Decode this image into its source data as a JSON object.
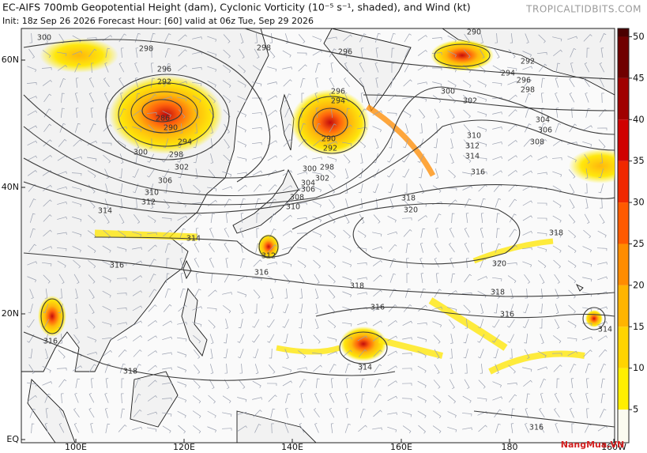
{
  "header": {
    "title": "EC-AIFS 700mb Geopotential Height (dam), Cyclonic Vorticity (10⁻⁵ s⁻¹, shaded), and Wind (kt)",
    "subtitle": "Init: 18z Sep 26 2026   Forecast Hour: [60]   valid at 06z Tue, Sep 29 2026",
    "site": "TROPICALTIDBITS.COM"
  },
  "map": {
    "lat_labels": [
      "60N",
      "40N",
      "20N",
      "EQ"
    ],
    "lon_labels": [
      "100E",
      "120E",
      "140E",
      "160E",
      "180",
      "160W"
    ],
    "contour_labels": [
      "300",
      "298",
      "296",
      "292",
      "286",
      "290",
      "294",
      "298",
      "302",
      "300",
      "306",
      "310",
      "312",
      "314",
      "298",
      "296",
      "290",
      "292",
      "294",
      "296",
      "298",
      "300",
      "302",
      "296",
      "294",
      "290",
      "292",
      "298",
      "300",
      "302",
      "304",
      "306",
      "308",
      "310",
      "304",
      "306",
      "308",
      "310",
      "312",
      "314",
      "316",
      "318",
      "320",
      "314",
      "312",
      "316",
      "316",
      "320",
      "318",
      "318",
      "318",
      "316",
      "316",
      "314",
      "314",
      "316",
      "318",
      "316"
    ]
  },
  "colorbar": {
    "lim": [
      1,
      51
    ],
    "ticks": [
      5,
      10,
      15,
      20,
      25,
      30,
      35,
      40,
      45,
      50
    ],
    "colors": [
      "#fbfbf0",
      "#ffef00",
      "#ffd400",
      "#ffb400",
      "#ff8c00",
      "#ff5a00",
      "#f02800",
      "#d00000",
      "#a00000",
      "#700000",
      "#4a0000"
    ]
  },
  "watermark": "NangMua.VN"
}
